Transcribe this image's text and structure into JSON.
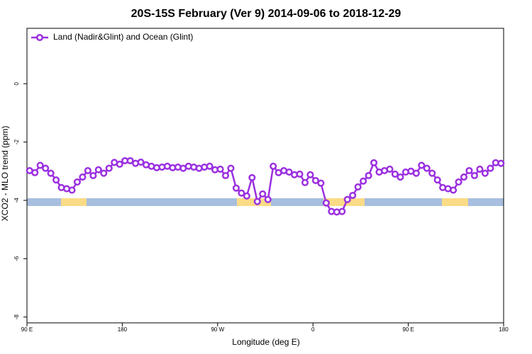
{
  "chart_data": {
    "type": "line",
    "title": "20S-15S February (Ver 9)   2014-09-06 to 2018-12-29",
    "x_label": "Longitude (deg E)",
    "y_label": "XCO2 - MLO trend (ppm)",
    "xlim": [
      90,
      540
    ],
    "ylim": [
      -8.2,
      1.9
    ],
    "xticks": [
      {
        "value": 90,
        "label": "90 E"
      },
      180,
      {
        "value": 270,
        "label": "90 W"
      },
      {
        "value": 360,
        "label": "0"
      },
      {
        "value": 450,
        "label": "90 E"
      },
      {
        "value": 540,
        "label": "180"
      }
    ],
    "yticks": [
      0,
      -2,
      -4,
      -6,
      -8
    ],
    "legend": "upper left",
    "x": [
      92.5,
      97.5,
      102.5,
      107.5,
      112.5,
      117.5,
      122.5,
      127.5,
      132.5,
      137.5,
      142.5,
      147.5,
      152.5,
      157.5,
      162.5,
      167.5,
      172.5,
      177.5,
      182.5,
      187.5,
      192.5,
      197.5,
      202.5,
      207.5,
      212.5,
      217.5,
      222.5,
      227.5,
      232.5,
      237.5,
      242.5,
      247.5,
      252.5,
      257.5,
      262.5,
      267.5,
      272.5,
      277.5,
      282.5,
      287.5,
      292.5,
      297.5,
      302.5,
      307.5,
      312.5,
      317.5,
      322.5,
      327.5,
      332.5,
      337.5,
      342.5,
      347.5,
      352.5,
      357.5,
      362.5,
      367.5,
      372.5,
      377.5,
      382.5,
      387.5,
      392.5,
      397.5,
      402.5,
      407.5,
      412.5,
      417.5,
      422.5,
      427.5,
      432.5,
      437.5,
      442.5,
      447.5,
      452.5,
      457.5,
      462.5,
      467.5,
      472.5,
      477.5,
      482.5,
      487.5,
      492.5,
      497.5,
      502.5,
      507.5,
      512.5,
      517.5,
      522.5,
      527.5,
      532.5,
      537.5
    ],
    "series": [
      {
        "name": "Land (Nadir&Glint) and Ocean (Glint)",
        "color": "#9b30e0",
        "values": [
          -2.98,
          -3.05,
          -2.8,
          -2.9,
          -3.07,
          -3.3,
          -3.56,
          -3.6,
          -3.65,
          -3.37,
          -3.2,
          -2.98,
          -3.15,
          -2.95,
          -3.07,
          -2.9,
          -2.7,
          -2.76,
          -2.64,
          -2.64,
          -2.73,
          -2.69,
          -2.78,
          -2.83,
          -2.88,
          -2.86,
          -2.83,
          -2.88,
          -2.86,
          -2.9,
          -2.83,
          -2.86,
          -2.9,
          -2.86,
          -2.83,
          -2.95,
          -2.93,
          -3.15,
          -2.9,
          -3.58,
          -3.75,
          -3.85,
          -3.22,
          -4.04,
          -3.78,
          -3.97,
          -2.83,
          -3.05,
          -2.98,
          -3.03,
          -3.12,
          -3.1,
          -3.39,
          -3.12,
          -3.32,
          -3.41,
          -4.09,
          -4.38,
          -4.4,
          -4.38,
          -3.97,
          -3.83,
          -3.54,
          -3.34,
          -3.15,
          -2.71,
          -3.03,
          -2.98,
          -2.93,
          -3.1,
          -3.2,
          -3.03,
          -3.0,
          -3.07,
          -2.8,
          -2.9,
          -3.07,
          -3.3,
          -3.56,
          -3.6,
          -3.65,
          -3.37,
          -3.2,
          -2.98,
          -3.15,
          -2.93,
          -3.07,
          -2.9,
          -2.71,
          -2.73
        ]
      }
    ]
  }
}
